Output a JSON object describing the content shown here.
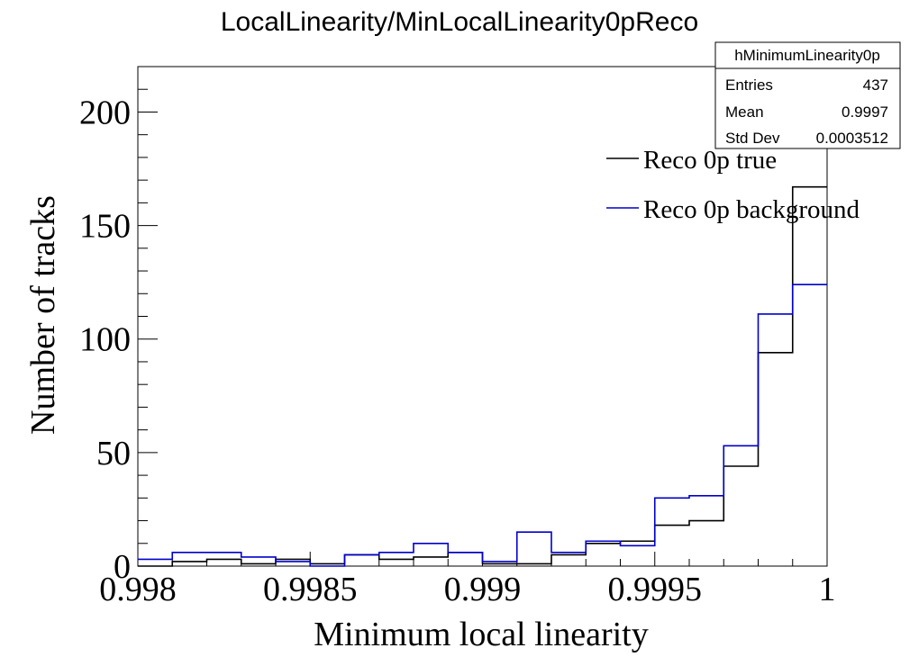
{
  "chart_data": {
    "type": "histogram",
    "title": "LocalLinearity/MinLocalLinearity0pReco",
    "xlabel": "Minimum local linearity",
    "ylabel": "Number of tracks",
    "xlim": [
      0.998,
      1.0
    ],
    "ylim": [
      0,
      220
    ],
    "x_ticks": [
      0.998,
      0.9985,
      0.999,
      0.9995,
      1.0
    ],
    "x_tick_labels": [
      "0.998",
      "0.9985",
      "0.999",
      "0.9995",
      "1"
    ],
    "y_ticks": [
      0,
      50,
      100,
      150,
      200
    ],
    "y_tick_labels": [
      "0",
      "50",
      "100",
      "150",
      "200"
    ],
    "bin_edges": [
      0.998,
      0.9981,
      0.9982,
      0.9983,
      0.9984,
      0.9985,
      0.9986,
      0.9987,
      0.9988,
      0.9989,
      0.999,
      0.9991,
      0.9992,
      0.9993,
      0.9994,
      0.9995,
      0.9996,
      0.9997,
      0.9998,
      0.9999,
      1.0
    ],
    "series": [
      {
        "name": "Reco 0p true",
        "color": "#000000",
        "values": [
          0,
          2,
          3,
          1,
          3,
          1,
          5,
          3,
          4,
          6,
          1,
          1,
          5,
          10,
          11,
          18,
          20,
          44,
          94,
          167
        ]
      },
      {
        "name": "Reco 0p background",
        "color": "#0000cc",
        "values": [
          3,
          6,
          6,
          4,
          2,
          0,
          5,
          6,
          10,
          6,
          2,
          15,
          6,
          11,
          9,
          30,
          31,
          53,
          111,
          124
        ]
      }
    ],
    "legend_position": "top-right"
  },
  "stats_box": {
    "name": "hMinimumLinearity0p",
    "rows": [
      {
        "label": "Entries",
        "value": "437"
      },
      {
        "label": "Mean",
        "value": "0.9997"
      },
      {
        "label": "Std Dev",
        "value": "0.0003512"
      }
    ]
  }
}
